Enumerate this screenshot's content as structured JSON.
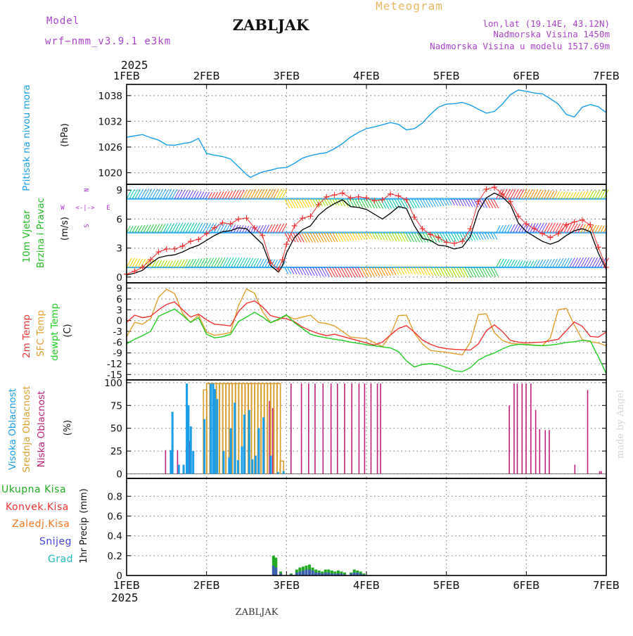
{
  "header": {
    "model_label": "Model",
    "model_name": "wrf−nmm_v3.9.1  e3km",
    "station": "ZABLJAK",
    "meteogram_label": "Meteogram",
    "lonlat": "lon,lat (19.14E, 43.12N)",
    "elevation": "Nadmorska Visina 1450m",
    "model_elevation": "Nadmorska Visina u modelu 1517.69m",
    "year": "2025",
    "footer_station": "ZABLJAK",
    "credit": "made by Angel"
  },
  "colors": {
    "pressure": "#1a9ee8",
    "wind_label": "#22bb22",
    "wind_dir_label": "#aa33cc",
    "temp2m": "#ee3333",
    "sfc_temp": "#e0a030",
    "dewpt": "#22cc22",
    "cloud_high": "#1a9ee8",
    "cloud_mid": "#d9a030",
    "cloud_low": "#c0207a",
    "precip_total": "#22aa22",
    "precip_conv": "#ee3333",
    "precip_frz": "#ee7722",
    "precip_snow": "#4444dd",
    "precip_grad": "#22bbbb"
  },
  "chart_data": [
    {
      "type": "line",
      "name": "pressure",
      "ylabel": "Pritisak na nivou mora",
      "units": "(hPa)",
      "x_days": [
        1,
        2,
        3,
        4,
        5,
        6,
        7
      ],
      "x_tick_labels": [
        "1FEB",
        "2FEB",
        "3FEB",
        "4FEB",
        "5FEB",
        "6FEB",
        "7FEB"
      ],
      "y_ticks": [
        1020,
        1026,
        1032,
        1038
      ],
      "ylim": [
        1017.3,
        1040.6
      ],
      "x": [
        1.0,
        1.1,
        1.2,
        1.3,
        1.4,
        1.5,
        1.6,
        1.7,
        1.8,
        1.9,
        2.0,
        2.1,
        2.2,
        2.3,
        2.4,
        2.5,
        2.55,
        2.6,
        2.7,
        2.8,
        2.9,
        3.0,
        3.1,
        3.2,
        3.3,
        3.4,
        3.5,
        3.6,
        3.7,
        3.8,
        3.9,
        4.0,
        4.1,
        4.2,
        4.3,
        4.4,
        4.5,
        4.6,
        4.7,
        4.8,
        4.9,
        5.0,
        5.1,
        5.2,
        5.3,
        5.4,
        5.5,
        5.6,
        5.7,
        5.8,
        5.9,
        6.0,
        6.1,
        6.2,
        6.3,
        6.4,
        6.5,
        6.6,
        6.7,
        6.8,
        6.9,
        7.0
      ],
      "values": [
        1028.3,
        1028.6,
        1028.9,
        1028.2,
        1027.6,
        1026.5,
        1026.4,
        1026.8,
        1027.1,
        1028.0,
        1024.5,
        1024.1,
        1023.8,
        1023.2,
        1021.4,
        1019.6,
        1018.9,
        1019.4,
        1020.2,
        1020.6,
        1021.1,
        1021.2,
        1022.2,
        1023.4,
        1024.0,
        1024.4,
        1024.7,
        1025.6,
        1026.8,
        1028.3,
        1029.4,
        1030.3,
        1030.7,
        1031.2,
        1031.7,
        1031.3,
        1030.0,
        1030.3,
        1031.6,
        1033.6,
        1035.3,
        1036.0,
        1036.1,
        1036.4,
        1035.8,
        1034.8,
        1033.9,
        1034.3,
        1036.0,
        1038.2,
        1039.3,
        1039.0,
        1038.6,
        1038.4,
        1037.3,
        1036.0,
        1033.6,
        1033.0,
        1035.3,
        1035.9,
        1035.4,
        1034.0
      ]
    },
    {
      "type": "line",
      "name": "wind",
      "ylabel": "10m Vjetar",
      "ylabel2": "Brzina i Pravac",
      "units": "(m/s)",
      "direction_legend": [
        "N",
        "E",
        "W",
        "S"
      ],
      "y_ticks": [
        0,
        3,
        6,
        9
      ],
      "ylim": [
        -0.6,
        9.6
      ],
      "x": [
        1.0,
        1.1,
        1.2,
        1.3,
        1.4,
        1.5,
        1.6,
        1.7,
        1.8,
        1.9,
        2.0,
        2.1,
        2.2,
        2.3,
        2.4,
        2.5,
        2.6,
        2.7,
        2.8,
        2.9,
        2.95,
        3.0,
        3.1,
        3.2,
        3.3,
        3.4,
        3.5,
        3.6,
        3.7,
        3.8,
        3.9,
        4.0,
        4.1,
        4.2,
        4.3,
        4.4,
        4.5,
        4.6,
        4.7,
        4.8,
        4.9,
        5.0,
        5.1,
        5.2,
        5.3,
        5.4,
        5.5,
        5.6,
        5.7,
        5.8,
        5.9,
        6.0,
        6.1,
        6.2,
        6.3,
        6.4,
        6.5,
        6.6,
        6.7,
        6.8,
        6.9,
        7.0
      ],
      "speed": [
        0.2,
        0.4,
        0.7,
        1.4,
        2.0,
        2.2,
        2.3,
        2.6,
        3.0,
        3.3,
        3.8,
        4.3,
        4.7,
        4.8,
        5.1,
        5.0,
        4.2,
        3.4,
        1.2,
        0.5,
        1.2,
        2.5,
        4.1,
        4.9,
        5.3,
        6.4,
        7.1,
        7.6,
        8.0,
        7.3,
        7.2,
        7.0,
        6.5,
        6.0,
        6.6,
        7.3,
        7.1,
        5.3,
        4.0,
        3.8,
        3.3,
        3.2,
        2.9,
        3.1,
        4.2,
        6.8,
        8.2,
        8.7,
        8.3,
        7.5,
        5.6,
        4.7,
        4.2,
        3.7,
        3.4,
        3.7,
        4.3,
        4.8,
        5.0,
        4.7,
        2.5,
        0.8
      ],
      "gust": [
        0.3,
        0.6,
        1.0,
        1.8,
        2.6,
        2.9,
        2.9,
        3.2,
        3.7,
        3.9,
        4.5,
        5.1,
        5.6,
        5.5,
        6.0,
        6.1,
        5.1,
        4.3,
        1.5,
        0.8,
        1.8,
        3.4,
        5.3,
        6.1,
        6.3,
        7.5,
        8.3,
        8.5,
        8.7,
        8.2,
        8.3,
        8.2,
        7.9,
        8.0,
        8.6,
        8.4,
        8.0,
        6.2,
        5.0,
        4.4,
        4.1,
        3.6,
        3.5,
        3.7,
        5.0,
        7.8,
        9.1,
        9.3,
        8.6,
        7.8,
        6.3,
        5.5,
        5.0,
        4.5,
        4.1,
        4.5,
        5.4,
        5.7,
        5.9,
        5.4,
        3.1,
        1.0
      ],
      "shaft_levels": [
        1.0,
        4.6,
        8.1
      ]
    },
    {
      "type": "line",
      "name": "temperature",
      "ylabel": "2m Temp",
      "ylabel2": "SFC Temp",
      "ylabel3": "dewpt Temp",
      "units": "(C)",
      "y_ticks": [
        9,
        6,
        3,
        0,
        -3,
        -6,
        -9,
        -12,
        -15
      ],
      "ylim": [
        -16.5,
        10.5
      ],
      "x": [
        1.0,
        1.1,
        1.2,
        1.3,
        1.4,
        1.5,
        1.6,
        1.7,
        1.8,
        1.9,
        2.0,
        2.1,
        2.2,
        2.3,
        2.4,
        2.5,
        2.6,
        2.7,
        2.8,
        2.9,
        3.0,
        3.1,
        3.2,
        3.3,
        3.4,
        3.5,
        3.6,
        3.7,
        3.8,
        3.9,
        4.0,
        4.1,
        4.2,
        4.3,
        4.4,
        4.5,
        4.6,
        4.7,
        4.8,
        4.9,
        5.0,
        5.1,
        5.2,
        5.3,
        5.4,
        5.5,
        5.6,
        5.7,
        5.8,
        5.9,
        6.0,
        6.1,
        6.2,
        6.3,
        6.4,
        6.5,
        6.6,
        6.7,
        6.8,
        6.9,
        7.0
      ],
      "temp2m": [
        -0.5,
        1.5,
        0.8,
        1.2,
        3.0,
        4.5,
        5.2,
        3.0,
        1.0,
        1.8,
        0.2,
        -1.0,
        -1.2,
        -1.5,
        2.5,
        4.8,
        5.5,
        3.8,
        1.4,
        0.8,
        0.5,
        -0.3,
        -1.8,
        -2.8,
        -3.6,
        -4.2,
        -3.8,
        -4.4,
        -5.0,
        -5.6,
        -6.2,
        -6.8,
        -6.0,
        -4.0,
        -2.2,
        -1.4,
        -3.2,
        -5.4,
        -6.6,
        -7.4,
        -7.8,
        -8.0,
        -8.1,
        -8.2,
        -6.5,
        -2.8,
        -1.2,
        -3.0,
        -5.5,
        -6.0,
        -6.2,
        -6.1,
        -6.0,
        -5.6,
        -5.2,
        -2.8,
        -0.4,
        -1.6,
        -4.4,
        -4.6,
        -3.2
      ],
      "sfc_temp": [
        -4.5,
        -0.5,
        -1.0,
        0.5,
        6.5,
        8.7,
        7.5,
        2.0,
        -0.5,
        1.5,
        -3.2,
        -4.1,
        -3.8,
        -3.3,
        4.2,
        8.8,
        7.6,
        2.5,
        -0.6,
        0.2,
        1.4,
        0.4,
        1.0,
        1.5,
        -0.5,
        -0.8,
        -1.5,
        -3.0,
        -4.6,
        -4.8,
        -5.0,
        -6.2,
        -7.2,
        -4.0,
        1.4,
        1.5,
        -3.5,
        -6.5,
        -8.3,
        -8.6,
        -8.8,
        -9.2,
        -9.5,
        -6.0,
        1.7,
        1.9,
        -3.4,
        -5.5,
        -6.3,
        -6.5,
        -6.6,
        -6.8,
        -7.0,
        -4.8,
        3.0,
        3.4,
        -1.2,
        -5.3,
        -5.9,
        -6.2,
        -7.0
      ],
      "dewpt": [
        -6.5,
        -5.2,
        -4.2,
        -3.0,
        1.2,
        2.2,
        3.2,
        1.5,
        -0.5,
        0.8,
        -3.8,
        -4.8,
        -4.5,
        -3.8,
        -0.3,
        1.0,
        2.3,
        1.0,
        -0.6,
        0.4,
        1.6,
        -0.6,
        -2.2,
        -3.8,
        -4.4,
        -4.8,
        -5.2,
        -5.5,
        -6.0,
        -6.3,
        -6.7,
        -7.0,
        -7.3,
        -7.6,
        -8.6,
        -11.2,
        -12.9,
        -12.2,
        -12.0,
        -12.3,
        -13.0,
        -14.0,
        -14.2,
        -13.1,
        -11.0,
        -9.8,
        -9.0,
        -7.9,
        -7.0,
        -6.6,
        -6.7,
        -6.9,
        -7.0,
        -6.8,
        -6.5,
        -6.1,
        -5.9,
        -5.5,
        -5.7,
        -10.0,
        -14.8
      ]
    },
    {
      "type": "bar",
      "name": "cloud_cover",
      "ylabel": "Visoka Oblacnost",
      "ylabel2": "Srednja Oblacnost",
      "ylabel3": "Niska Oblacnost",
      "units": "(%)",
      "y_ticks": [
        0,
        25,
        50,
        75,
        100
      ],
      "ylim": [
        -5,
        103
      ],
      "high": [
        [
          1.54,
          26
        ],
        [
          1.56,
          68
        ],
        [
          1.64,
          10
        ],
        [
          1.7,
          10
        ],
        [
          1.74,
          99
        ],
        [
          1.76,
          75
        ],
        [
          1.79,
          52
        ],
        [
          1.82,
          25
        ],
        [
          1.96,
          60
        ],
        [
          2.04,
          99
        ],
        [
          2.07,
          99
        ],
        [
          2.09,
          93
        ],
        [
          2.12,
          82
        ],
        [
          2.2,
          25
        ],
        [
          2.27,
          18
        ],
        [
          2.29,
          50
        ],
        [
          2.34,
          78
        ],
        [
          2.38,
          15
        ],
        [
          2.43,
          30
        ],
        [
          2.46,
          65
        ],
        [
          2.52,
          70
        ],
        [
          2.56,
          16
        ],
        [
          2.6,
          20
        ],
        [
          2.64,
          50
        ],
        [
          2.7,
          62
        ],
        [
          2.79,
          20
        ],
        [
          2.88,
          2
        ],
        [
          2.95,
          3
        ]
      ],
      "mid": [
        [
          1.96,
          92
        ],
        [
          2.0,
          99
        ],
        [
          2.04,
          99
        ],
        [
          2.08,
          99
        ],
        [
          2.12,
          99
        ],
        [
          2.16,
          99
        ],
        [
          2.2,
          99
        ],
        [
          2.24,
          99
        ],
        [
          2.28,
          99
        ],
        [
          2.32,
          99
        ],
        [
          2.36,
          99
        ],
        [
          2.4,
          99
        ],
        [
          2.44,
          99
        ],
        [
          2.48,
          99
        ],
        [
          2.52,
          99
        ],
        [
          2.56,
          99
        ],
        [
          2.6,
          99
        ],
        [
          2.64,
          99
        ],
        [
          2.68,
          99
        ],
        [
          2.72,
          99
        ],
        [
          2.76,
          99
        ],
        [
          2.8,
          99
        ],
        [
          2.84,
          99
        ],
        [
          2.88,
          99
        ],
        [
          2.92,
          14
        ]
      ],
      "low": [
        [
          1.48,
          26
        ],
        [
          1.63,
          26
        ],
        [
          1.74,
          30
        ],
        [
          1.78,
          36
        ],
        [
          2.78,
          80
        ],
        [
          2.82,
          72
        ],
        [
          3.05,
          99
        ],
        [
          3.18,
          99
        ],
        [
          3.27,
          99
        ],
        [
          3.35,
          99
        ],
        [
          3.45,
          99
        ],
        [
          3.55,
          99
        ],
        [
          3.63,
          99
        ],
        [
          3.72,
          99
        ],
        [
          3.81,
          99
        ],
        [
          3.9,
          99
        ],
        [
          3.97,
          99
        ],
        [
          4.05,
          99
        ],
        [
          4.13,
          99
        ],
        [
          4.17,
          99
        ],
        [
          5.78,
          75
        ],
        [
          5.84,
          99
        ],
        [
          5.88,
          99
        ],
        [
          5.94,
          99
        ],
        [
          5.99,
          99
        ],
        [
          6.05,
          99
        ],
        [
          6.11,
          70
        ],
        [
          6.16,
          49
        ],
        [
          6.23,
          48
        ],
        [
          6.28,
          48
        ],
        [
          6.6,
          10
        ],
        [
          6.76,
          92
        ],
        [
          6.91,
          3
        ],
        [
          6.93,
          3
        ]
      ]
    },
    {
      "type": "bar",
      "name": "precipitation",
      "ylabel": "1hr Precip",
      "units": "(mm)",
      "legend": [
        "Ukupna  Kisa",
        "Konvek.Kisa",
        "Zaledj.Kisa",
        "Snijeg",
        "Grad"
      ],
      "y_ticks": [
        0,
        0.2,
        0.4,
        0.6,
        0.8
      ],
      "ylim": [
        0,
        0.98
      ],
      "total": [
        [
          2.82,
          0.2
        ],
        [
          2.85,
          0.18
        ],
        [
          2.91,
          0.04
        ],
        [
          3.04,
          0.02
        ],
        [
          3.11,
          0.06
        ],
        [
          3.15,
          0.08
        ],
        [
          3.19,
          0.09
        ],
        [
          3.23,
          0.1
        ],
        [
          3.27,
          0.11
        ],
        [
          3.31,
          0.08
        ],
        [
          3.35,
          0.06
        ],
        [
          3.39,
          0.05
        ],
        [
          3.43,
          0.04
        ],
        [
          3.47,
          0.06
        ],
        [
          3.51,
          0.06
        ],
        [
          3.55,
          0.05
        ],
        [
          3.59,
          0.04
        ],
        [
          3.63,
          0.05
        ],
        [
          3.67,
          0.04
        ],
        [
          3.71,
          0.03
        ],
        [
          3.79,
          0.03
        ],
        [
          3.83,
          0.06
        ],
        [
          3.87,
          0.05
        ],
        [
          3.91,
          0.04
        ],
        [
          3.95,
          0.02
        ]
      ],
      "snow": [
        [
          2.82,
          0.1
        ],
        [
          2.85,
          0.08
        ],
        [
          2.91,
          0.02
        ],
        [
          3.04,
          0.01
        ],
        [
          3.11,
          0.03
        ],
        [
          3.15,
          0.04
        ],
        [
          3.19,
          0.05
        ],
        [
          3.23,
          0.06
        ],
        [
          3.27,
          0.06
        ],
        [
          3.31,
          0.05
        ],
        [
          3.35,
          0.03
        ],
        [
          3.39,
          0.03
        ],
        [
          3.43,
          0.02
        ],
        [
          3.47,
          0.03
        ],
        [
          3.51,
          0.03
        ],
        [
          3.55,
          0.02
        ],
        [
          3.59,
          0.02
        ],
        [
          3.63,
          0.02
        ],
        [
          3.67,
          0.02
        ],
        [
          3.71,
          0.01
        ],
        [
          3.79,
          0.02
        ],
        [
          3.83,
          0.03
        ],
        [
          3.87,
          0.03
        ],
        [
          3.91,
          0.02
        ],
        [
          3.95,
          0.01
        ]
      ]
    }
  ]
}
